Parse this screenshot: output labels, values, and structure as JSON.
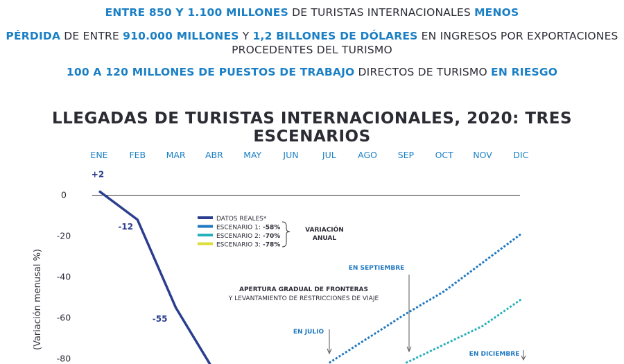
{
  "headlines": {
    "line1": {
      "b1": "ENTRE 850 Y 1.100 MILLONES",
      "t1": " DE TURISTAS INTERNACIONALES ",
      "b2": "MENOS"
    },
    "line2": {
      "b1": "PÉRDIDA",
      "t1": " DE ENTRE ",
      "b2": "910.000 MILLONES",
      "t2": " Y ",
      "b3": "1,2 BILLONES DE DÓLARES",
      "t3": " EN INGRESOS POR EXPORTACIONES PROCEDENTES DEL TURISMO"
    },
    "line3": {
      "b1": "100 A 120 MILLONES DE PUESTOS DE TRABAJO",
      "t1": " DIRECTOS DE TURISMO ",
      "b2": "EN RIESGO"
    }
  },
  "colors": {
    "headline_blue": "#1a7fc4",
    "datos_reales": "#2a3d8f",
    "escenario1": "#1f78c1",
    "escenario2": "#26b0bb",
    "escenario3": "#dddd3a",
    "month_labels": "#1a7fc4",
    "text": "#2d2d38"
  },
  "chart_data": {
    "type": "line",
    "title": "LLEGADAS DE TURISTAS INTERNACIONALES, 2020: TRES ESCENARIOS",
    "ylabel": "(Variación menusal %)",
    "categories": [
      "ENE",
      "FEB",
      "MAR",
      "ABR",
      "MAY",
      "JUN",
      "JUL",
      "AGO",
      "SEP",
      "OCT",
      "NOV",
      "DIC"
    ],
    "yticks": [
      "0",
      "-20",
      "-40",
      "-60",
      "-80"
    ],
    "ylim": [
      -85,
      5
    ],
    "series": [
      {
        "name": "DATOS REALES*",
        "style": "solid",
        "color": "#2a3d8f",
        "points": [
          [
            "ENE",
            2
          ],
          [
            "FEB",
            -12
          ],
          [
            "MAR",
            -55
          ],
          [
            "ABR",
            -86
          ]
        ],
        "labels": [
          [
            "ENE",
            "+2"
          ],
          [
            "FEB",
            "-12"
          ],
          [
            "MAR",
            "-55"
          ]
        ]
      },
      {
        "name": "ESCENARIO 1:",
        "value": "-58%",
        "style": "dotted",
        "color": "#1f78c1",
        "points": [
          [
            "JUL",
            -82
          ],
          [
            "AGO",
            -70
          ],
          [
            "SEP",
            -58
          ],
          [
            "OCT",
            -47
          ],
          [
            "NOV",
            -33
          ],
          [
            "DIC",
            -19
          ]
        ]
      },
      {
        "name": "ESCENARIO 2:",
        "value": "-70%",
        "style": "dotted",
        "color": "#26b0bb",
        "points": [
          [
            "SEP",
            -82
          ],
          [
            "OCT",
            -73
          ],
          [
            "NOV",
            -64
          ],
          [
            "DIC",
            -51
          ]
        ]
      },
      {
        "name": "ESCENARIO 3:",
        "value": "-78%",
        "style": "dotted",
        "color": "#dddd3a",
        "points": []
      }
    ],
    "legend": {
      "position": "top-center",
      "group_label": "VARIACIÓN ANUAL"
    },
    "annotations": [
      {
        "text": "EN SEPTIEMBRE",
        "month": "SEP"
      },
      {
        "text": "APERTURA GRADUAL DE FRONTERAS",
        "bold": true
      },
      {
        "text": "Y LEVANTAMIENTO DE RESTRICCIONES DE VIAJE"
      },
      {
        "text": "EN JULIO",
        "month": "JUL"
      },
      {
        "text": "EN DICIEMBRE",
        "month": "DIC"
      }
    ],
    "grid": false
  }
}
